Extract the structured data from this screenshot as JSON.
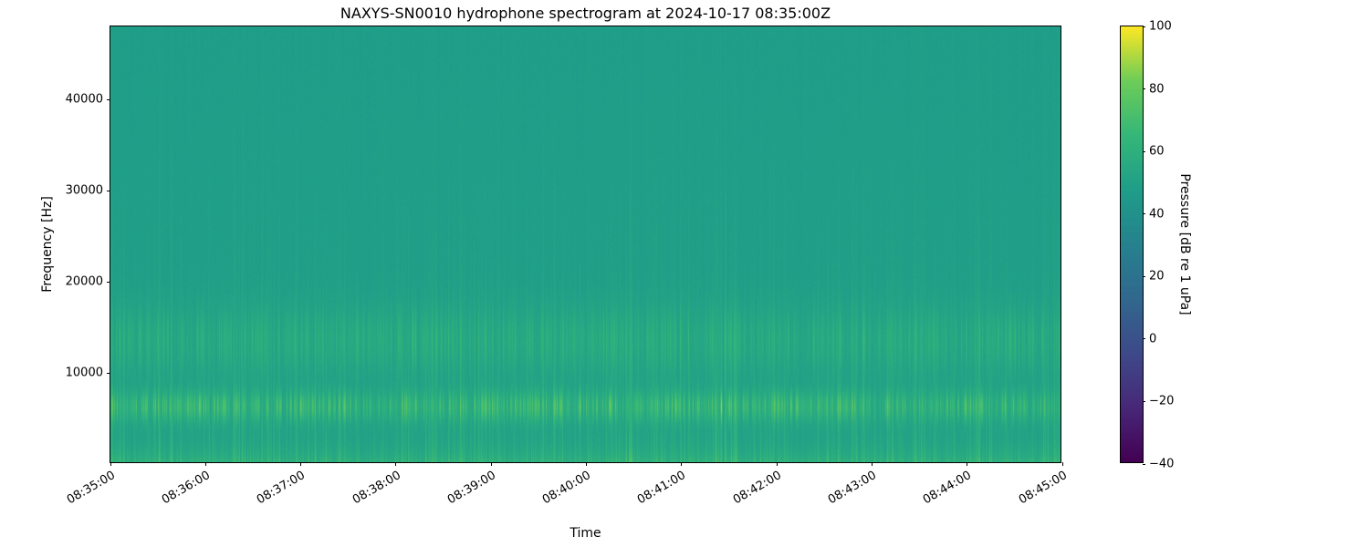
{
  "chart_data": {
    "type": "heatmap",
    "title": "NAXYS-SN0010 hydrophone spectrogram at 2024-10-17 08:35:00Z",
    "xlabel": "Time",
    "ylabel": "Frequency [Hz]",
    "x_ticks": [
      "08:35:00",
      "08:36:00",
      "08:37:00",
      "08:38:00",
      "08:39:00",
      "08:40:00",
      "08:41:00",
      "08:42:00",
      "08:43:00",
      "08:44:00",
      "08:45:00"
    ],
    "y_tick_values": [
      10000,
      20000,
      30000,
      40000
    ],
    "y_tick_labels": [
      "10000",
      "20000",
      "30000",
      "40000"
    ],
    "y_range_hz": [
      0,
      48000
    ],
    "time_span_minutes": 10,
    "colorbar": {
      "label": "Pressure [dB re 1 uPa]",
      "range": [
        -40,
        100
      ],
      "tick_values": [
        100,
        80,
        60,
        40,
        20,
        0,
        -20,
        -40
      ],
      "tick_labels": [
        "100",
        "80",
        "60",
        "40",
        "20",
        "0",
        "−20",
        "−40"
      ],
      "colormap": "viridis",
      "position": "right"
    },
    "colormap_stops": [
      "#440154",
      "#482878",
      "#3e4a89",
      "#31688e",
      "#26828e",
      "#1f9e89",
      "#35b779",
      "#6dcd59",
      "#fde725"
    ],
    "background_level_db": 49,
    "features": [
      {
        "name": "tonal-band",
        "center_hz": 6200,
        "sigma_hz": 1200,
        "peak_db": 80,
        "description": "bright intermittent tonal band near 5-7.5 kHz with yellow-green speckles"
      },
      {
        "name": "mid-band",
        "center_hz": 13500,
        "sigma_hz": 2600,
        "peak_db": 66,
        "description": "textured elevated band around 11-16 kHz made of dense vertical striations"
      },
      {
        "name": "low-band",
        "decay_hz": 1500,
        "peak_db": 65,
        "description": "elevated broadband energy below ~2.5 kHz along the bottom edge"
      },
      {
        "name": "broadband-transients",
        "decay_hz": 16000,
        "peak_db": 65,
        "description": "sparse faint vertical click streaks spanning the full band"
      }
    ],
    "grid": false,
    "seed": 20241017
  }
}
